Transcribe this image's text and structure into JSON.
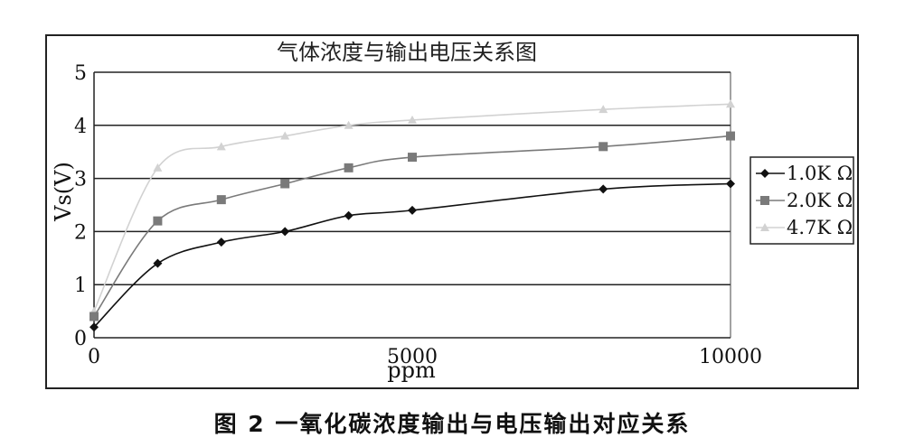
{
  "caption": "图 2    一氧化碳浓度输出与电压输出对应关系",
  "chart_data": {
    "type": "line",
    "title": "气体浓度与输出电压关系图",
    "xlabel": "ppm",
    "ylabel": "Vs(V)",
    "xlim": [
      0,
      10000
    ],
    "ylim": [
      0,
      5
    ],
    "xticks": [
      0,
      5000,
      10000
    ],
    "yticks": [
      0,
      1,
      2,
      3,
      4,
      5
    ],
    "grid": "horizontal",
    "legend_position": "right",
    "x": [
      0,
      1000,
      2000,
      3000,
      4000,
      5000,
      8000,
      10000
    ],
    "series": [
      {
        "name": "1.0K Ω",
        "marker": "diamond",
        "color": "#111111",
        "values": [
          0.2,
          1.4,
          1.8,
          2.0,
          2.3,
          2.4,
          2.8,
          2.9
        ]
      },
      {
        "name": "2.0K Ω",
        "marker": "square",
        "color": "#7a7a7a",
        "values": [
          0.4,
          2.2,
          2.6,
          2.9,
          3.2,
          3.4,
          3.6,
          3.8
        ]
      },
      {
        "name": "4.7K Ω",
        "marker": "triangle",
        "color": "#d2d2d2",
        "values": [
          0.5,
          3.2,
          3.6,
          3.8,
          4.0,
          4.1,
          4.3,
          4.4
        ]
      }
    ]
  }
}
